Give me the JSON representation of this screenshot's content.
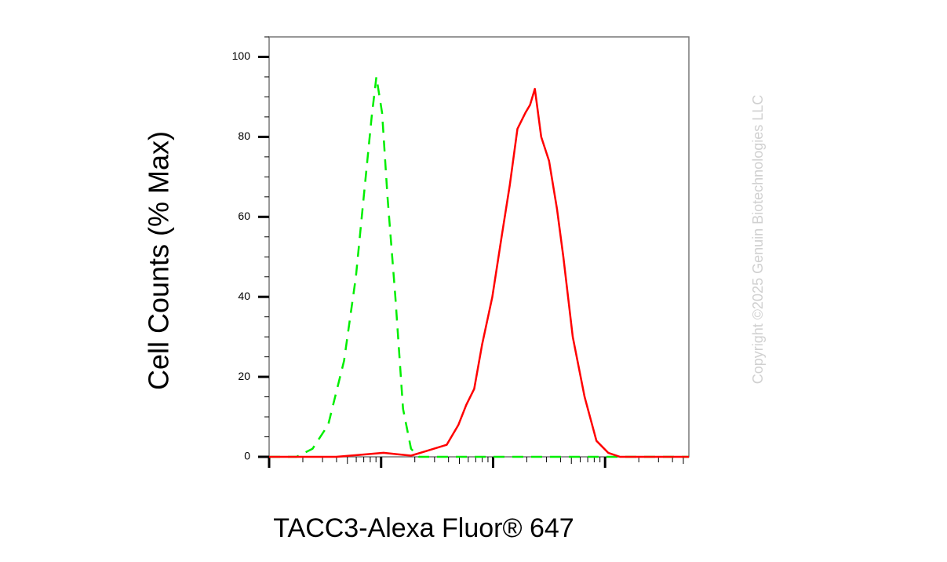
{
  "chart_data": {
    "type": "line",
    "y_label": "Cell Counts (% Max)",
    "x_label": "TACC3-Alexa Fluor® 647",
    "annotation": "Copyright ©2025 Genuin Biotechnologies LLC",
    "x_scale": "log",
    "xlim": [
      1,
      5600
    ],
    "xticks": [
      1,
      10,
      100,
      1000
    ],
    "ylim": [
      0,
      105
    ],
    "yticks": [
      0,
      20,
      40,
      60,
      80,
      100
    ],
    "series": [
      {
        "color": "#00ee00",
        "dash": true,
        "x": [
          1,
          1.76,
          2.44,
          3.37,
          4.67,
          5.95,
          7.0,
          8.23,
          9.07,
          10.2,
          11.4,
          13.4,
          15.7,
          18.5,
          21.8,
          32.7,
          5600
        ],
        "values": [
          0,
          0,
          2,
          8,
          24,
          45,
          65,
          85,
          95,
          86,
          65,
          40,
          12,
          2,
          0,
          0,
          0
        ]
      },
      {
        "color": "#ff0000",
        "dash": false,
        "x": [
          1,
          3.97,
          6.45,
          10.5,
          18.5,
          25.6,
          38.5,
          49,
          57.6,
          67.8,
          79.7,
          98.4,
          119,
          141,
          165,
          194,
          214,
          236,
          269,
          316,
          372,
          424,
          514,
          656,
          837,
          1067,
          1360,
          5600
        ],
        "values": [
          0,
          0,
          0.5,
          1,
          0.3,
          1.5,
          3,
          8,
          13,
          17,
          28,
          40,
          55,
          68,
          82,
          86,
          88,
          92,
          80,
          74,
          62,
          50,
          30,
          15,
          4,
          1,
          0,
          0
        ]
      }
    ]
  }
}
